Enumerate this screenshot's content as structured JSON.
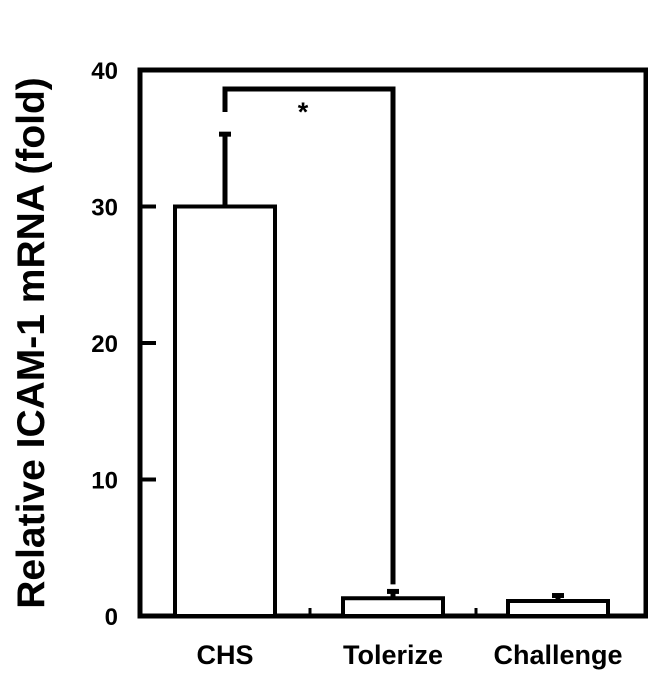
{
  "chart_data": {
    "type": "bar",
    "ylabel": "Relative ICAM-1 mRNA (fold)",
    "categories": [
      "CHS",
      "Tolerize",
      "Challenge"
    ],
    "values": [
      30,
      1.3,
      1.1
    ],
    "error_upper": [
      5.3,
      0.5,
      0.4
    ],
    "ylim": [
      0,
      40
    ],
    "yticks": [
      "0",
      "10",
      "20",
      "30",
      "40"
    ],
    "significance": {
      "label": "*",
      "between": [
        "CHS",
        "Tolerize"
      ]
    },
    "grid": false,
    "legend": false,
    "colors": {
      "bar_fill": "#ffffff",
      "stroke": "#000000",
      "text": "#000000"
    }
  }
}
